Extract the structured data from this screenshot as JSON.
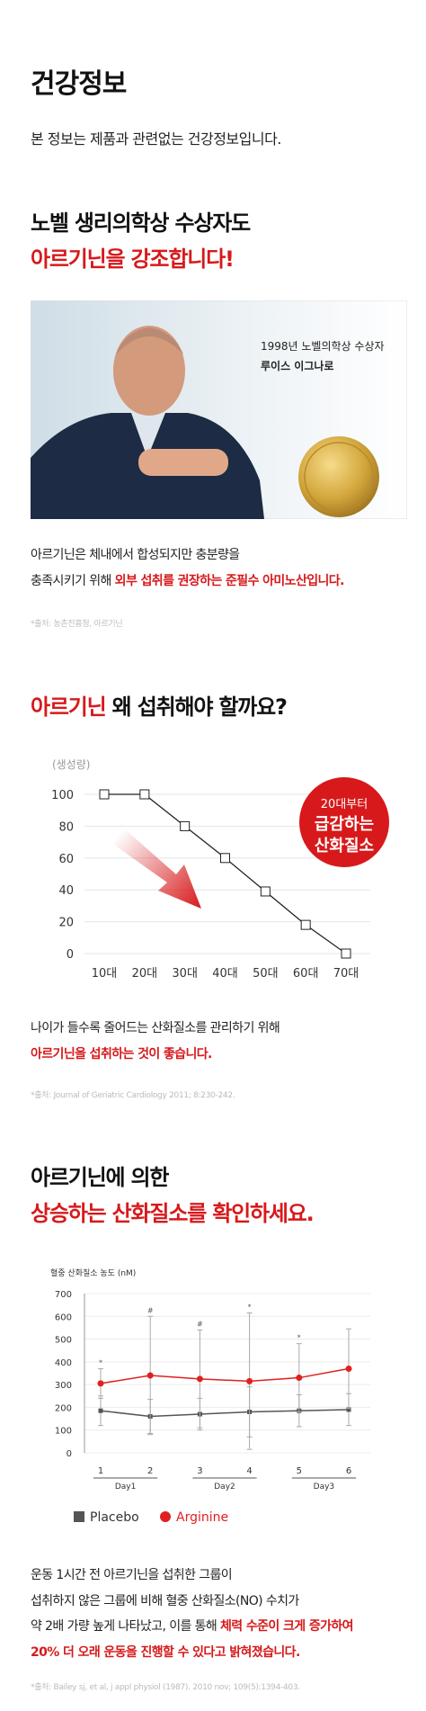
{
  "header": {
    "title": "건강정보",
    "subtitle": "본 정보는 제품과 관련없는 건강정보입니다."
  },
  "section1": {
    "heading": [
      [
        {
          "text": "노벨 생리의학상 수상자도"
        }
      ],
      [
        {
          "text": "아르기닌을 강조합니다!",
          "emphasis": true
        }
      ]
    ],
    "image_caption": [
      "1998년 노벨의학상 수상자",
      "루이스 이그나로"
    ],
    "body": [
      [
        {
          "text": "아르기닌은 체내에서 합성되지만 충분량을"
        }
      ],
      [
        {
          "text": "충족시키기 위해 "
        },
        {
          "text": "외부 섭취를 권장하는 준필수 아미노산입니다.",
          "emphasis": true
        }
      ]
    ],
    "source": "*출처: 농촌진흥청, 아르기닌"
  },
  "section2": {
    "heading": [
      [
        {
          "text": "아르기닌",
          "emphasis": true
        },
        {
          "text": " 왜 섭취해야 할까요?"
        }
      ]
    ],
    "body": [
      [
        {
          "text": "나이가 들수록 줄어드는 산화질소를 관리하기 위해"
        }
      ],
      [
        {
          "text": "아르기닌을 섭취하는 것이 좋습니다.",
          "emphasis": true
        }
      ]
    ],
    "source": "*출처: Journal of Geriatric Cardiology 2011; 8:230-242."
  },
  "section3": {
    "heading": [
      [
        {
          "text": "아르기닌에 의한"
        }
      ],
      [
        {
          "text": "상승하는 산화질소를 확인하세요.",
          "emphasis": true
        }
      ]
    ],
    "body": [
      [
        {
          "text": "운동 1시간 전 아르기닌을 섭취한 그룹이"
        }
      ],
      [
        {
          "text": "섭취하지 않은 그룹에 비해 혈중 산화질소(NO) 수치가"
        }
      ],
      [
        {
          "text": "약 2배 가량 높게 나타났고, 이를 통해 "
        },
        {
          "text": "체력 수준이 크게 증가하여",
          "emphasis": true
        }
      ],
      [
        {
          "text": "20% 더 오래 운동을 진행할 수 있다고 밝혀졌습니다.",
          "emphasis": true
        }
      ]
    ],
    "source": "*출처: Bailey sj, et al, j appl physiol (1987). 2010 nov; 109(5):1394-403."
  },
  "chart_data": [
    {
      "type": "line",
      "y_label": "(생성량)",
      "categories": [
        "10대",
        "20대",
        "30대",
        "40대",
        "50대",
        "60대",
        "70대"
      ],
      "values": [
        100,
        100,
        80,
        60,
        39,
        18,
        0
      ],
      "color": "#222222",
      "ylim": [
        0,
        100
      ],
      "yticks": [
        0,
        20,
        40,
        60,
        80,
        100
      ],
      "grid": true,
      "callout": [
        "20대부터",
        "급감하는",
        "산화질소"
      ],
      "callout_color": "#d7191b"
    },
    {
      "type": "errorbar_line",
      "title": "혈중 산화질소 농도 (nM)",
      "categories": [
        "1",
        "2",
        "3",
        "4",
        "5",
        "6"
      ],
      "groups": [
        "Day1",
        "Day2",
        "Day3"
      ],
      "ylim": [
        0,
        700
      ],
      "yticks": [
        0,
        100,
        200,
        300,
        400,
        500,
        600,
        700
      ],
      "grid": true,
      "series": [
        {
          "name": "Placebo",
          "color": "#555555",
          "marker": "square",
          "values": [
            185,
            160,
            170,
            180,
            185,
            190
          ],
          "errors": [
            65,
            75,
            70,
            110,
            70,
            70
          ]
        },
        {
          "name": "Arginine",
          "color": "#e02020",
          "marker": "circle",
          "values": [
            305,
            340,
            325,
            315,
            330,
            370
          ],
          "errors": [
            65,
            260,
            215,
            300,
            150,
            175
          ],
          "annotations": [
            "*",
            "#",
            "#",
            "*",
            "*",
            null
          ]
        }
      ]
    }
  ]
}
